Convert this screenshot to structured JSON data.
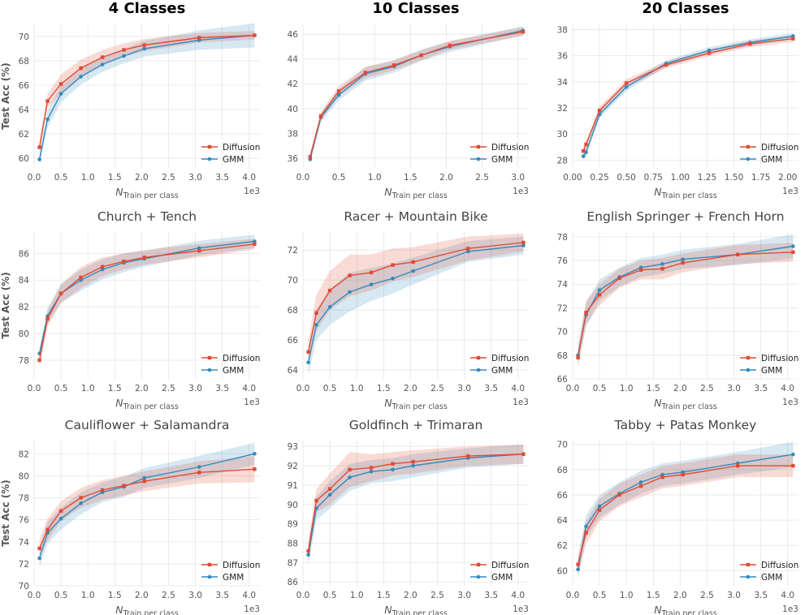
{
  "legend": {
    "diffusion_label": "Diffusion",
    "gmm_label": "GMM"
  },
  "colors": {
    "diffusion": "#e24a33",
    "gmm": "#348abd",
    "axis_text": "#555555",
    "grid": "#e5e5e5"
  },
  "ylabel": "Test Acc (%)",
  "xlabel_main": "N",
  "xlabel_sub": "Train per class",
  "exponent_label": "1e3",
  "chart_data": [
    {
      "type": "line",
      "title": "4 Classes",
      "title_bold": true,
      "x": [
        0.1,
        0.25,
        0.5,
        0.87,
        1.27,
        1.67,
        2.05,
        3.07,
        4.1
      ],
      "series": [
        {
          "name": "Diffusion",
          "values": [
            60.9,
            64.7,
            66.1,
            67.4,
            68.3,
            68.9,
            69.3,
            69.9,
            70.1
          ],
          "band": [
            0.45,
            0.55,
            0.8,
            0.7,
            0.6,
            0.55,
            0.5,
            0.4,
            0.35
          ]
        },
        {
          "name": "GMM",
          "values": [
            59.9,
            63.2,
            65.3,
            66.7,
            67.7,
            68.4,
            69.0,
            69.7,
            70.1
          ],
          "band": [
            0.5,
            0.7,
            0.7,
            0.65,
            0.6,
            0.6,
            0.65,
            0.8,
            1.0
          ]
        }
      ],
      "xlim": [
        0,
        4.2
      ],
      "ylim": [
        59.2,
        71.0
      ],
      "xticks": [
        0.0,
        0.5,
        1.0,
        1.5,
        2.0,
        2.5,
        3.0,
        3.5,
        4.0
      ],
      "xtick_labels": [
        "0.0",
        "0.5",
        "1.0",
        "1.5",
        "2.0",
        "2.5",
        "3.0",
        "3.5",
        "4.0"
      ],
      "yticks": [
        60,
        62,
        64,
        66,
        68,
        70
      ],
      "ytick_labels": [
        "60",
        "62",
        "64",
        "66",
        "68",
        "70"
      ],
      "show_ylabel": true
    },
    {
      "type": "line",
      "title": "10 Classes",
      "title_bold": true,
      "x": [
        0.1,
        0.25,
        0.5,
        0.87,
        1.27,
        1.65,
        2.05,
        3.07
      ],
      "series": [
        {
          "name": "Diffusion",
          "values": [
            36.1,
            39.4,
            41.4,
            42.9,
            43.5,
            44.3,
            45.1,
            46.2
          ],
          "band": [
            0.3,
            0.35,
            0.4,
            0.45,
            0.4,
            0.4,
            0.35,
            0.35
          ]
        },
        {
          "name": "GMM",
          "values": [
            35.9,
            39.3,
            41.1,
            42.8,
            43.4,
            44.3,
            45.0,
            46.3
          ],
          "band": [
            0.3,
            0.35,
            0.45,
            0.55,
            0.5,
            0.45,
            0.45,
            0.35
          ]
        }
      ],
      "xlim": [
        0,
        3.15
      ],
      "ylim": [
        35.2,
        46.8
      ],
      "xticks": [
        0.0,
        0.5,
        1.0,
        1.5,
        2.0,
        2.5,
        3.0
      ],
      "xtick_labels": [
        "0.0",
        "0.5",
        "1.0",
        "1.5",
        "2.0",
        "2.5",
        "3.0"
      ],
      "yticks": [
        36,
        38,
        40,
        42,
        44,
        46
      ],
      "ytick_labels": [
        "36",
        "38",
        "40",
        "42",
        "44",
        "46"
      ],
      "show_ylabel": false
    },
    {
      "type": "line",
      "title": "20 Classes",
      "title_bold": true,
      "x": [
        0.1,
        0.125,
        0.25,
        0.5,
        0.87,
        1.27,
        1.65,
        2.05
      ],
      "series": [
        {
          "name": "Diffusion",
          "values": [
            28.7,
            29.2,
            31.8,
            33.9,
            35.3,
            36.2,
            36.9,
            37.3
          ],
          "band": [
            0.3,
            0.3,
            0.3,
            0.3,
            0.25,
            0.25,
            0.25,
            0.25
          ]
        },
        {
          "name": "GMM",
          "values": [
            28.3,
            28.6,
            31.5,
            33.6,
            35.4,
            36.4,
            37.0,
            37.5
          ],
          "band": [
            0.3,
            0.3,
            0.3,
            0.3,
            0.25,
            0.25,
            0.25,
            0.25
          ]
        }
      ],
      "xlim": [
        0,
        2.1
      ],
      "ylim": [
        27.4,
        38.4
      ],
      "xticks": [
        0.0,
        0.25,
        0.5,
        0.75,
        1.0,
        1.25,
        1.5,
        1.75,
        2.0
      ],
      "xtick_labels": [
        "0.00",
        "0.25",
        "0.50",
        "0.75",
        "1.00",
        "1.25",
        "1.50",
        "1.75",
        "2.00"
      ],
      "yticks": [
        28,
        30,
        32,
        34,
        36,
        38
      ],
      "ytick_labels": [
        "28",
        "30",
        "32",
        "34",
        "36",
        "38"
      ],
      "show_ylabel": false
    },
    {
      "type": "line",
      "title": "Church + Tench",
      "title_bold": false,
      "x": [
        0.1,
        0.25,
        0.5,
        0.87,
        1.27,
        1.67,
        2.05,
        3.07,
        4.1
      ],
      "series": [
        {
          "name": "Diffusion",
          "values": [
            78.0,
            81.1,
            83.0,
            84.2,
            85.0,
            85.4,
            85.7,
            86.2,
            86.7
          ],
          "band": [
            0.4,
            0.6,
            0.7,
            0.8,
            0.7,
            0.6,
            0.55,
            0.5,
            0.4
          ]
        },
        {
          "name": "GMM",
          "values": [
            78.5,
            81.3,
            83.0,
            84.0,
            84.8,
            85.3,
            85.6,
            86.4,
            86.9
          ],
          "band": [
            0.4,
            0.6,
            0.7,
            0.8,
            0.75,
            0.7,
            0.6,
            0.55,
            0.5
          ]
        }
      ],
      "xlim": [
        0,
        4.2
      ],
      "ylim": [
        76.6,
        87.6
      ],
      "xticks": [
        0.0,
        0.5,
        1.0,
        1.5,
        2.0,
        2.5,
        3.0,
        3.5,
        4.0
      ],
      "xtick_labels": [
        "0.0",
        "0.5",
        "1.0",
        "1.5",
        "2.0",
        "2.5",
        "3.0",
        "3.5",
        "4.0"
      ],
      "yticks": [
        78,
        80,
        82,
        84,
        86
      ],
      "ytick_labels": [
        "78",
        "80",
        "82",
        "84",
        "86"
      ],
      "show_ylabel": true
    },
    {
      "type": "line",
      "title": "Racer + Mountain Bike",
      "title_bold": false,
      "x": [
        0.1,
        0.25,
        0.5,
        0.87,
        1.27,
        1.67,
        2.05,
        3.07,
        4.1
      ],
      "series": [
        {
          "name": "Diffusion",
          "values": [
            65.2,
            67.8,
            69.3,
            70.3,
            70.5,
            71.0,
            71.2,
            72.1,
            72.5
          ],
          "band": [
            0.8,
            1.2,
            1.3,
            1.4,
            1.2,
            1.1,
            1.0,
            0.8,
            0.6
          ]
        },
        {
          "name": "GMM",
          "values": [
            64.5,
            67.0,
            68.2,
            69.2,
            69.7,
            70.1,
            70.6,
            71.9,
            72.3
          ],
          "band": [
            0.8,
            1.0,
            1.2,
            1.3,
            1.1,
            1.0,
            0.9,
            0.7,
            0.6
          ]
        }
      ],
      "xlim": [
        0,
        4.2
      ],
      "ylim": [
        63.4,
        73.2
      ],
      "xticks": [
        0.0,
        0.5,
        1.0,
        1.5,
        2.0,
        2.5,
        3.0,
        3.5,
        4.0
      ],
      "xtick_labels": [
        "0.0",
        "0.5",
        "1.0",
        "1.5",
        "2.0",
        "2.5",
        "3.0",
        "3.5",
        "4.0"
      ],
      "yticks": [
        64,
        66,
        68,
        70,
        72
      ],
      "ytick_labels": [
        "64",
        "66",
        "68",
        "70",
        "72"
      ],
      "show_ylabel": false
    },
    {
      "type": "line",
      "title": "English Springer + French Horn",
      "title_bold": false,
      "x": [
        0.1,
        0.25,
        0.5,
        0.87,
        1.27,
        1.67,
        2.05,
        3.07,
        4.1
      ],
      "series": [
        {
          "name": "Diffusion",
          "values": [
            67.8,
            71.6,
            73.1,
            74.5,
            75.2,
            75.3,
            75.8,
            76.5,
            76.7
          ],
          "band": [
            0.8,
            1.0,
            0.9,
            0.8,
            0.8,
            0.9,
            0.8,
            0.8,
            0.8
          ]
        },
        {
          "name": "GMM",
          "values": [
            68.0,
            71.4,
            73.5,
            74.6,
            75.4,
            75.7,
            76.1,
            76.5,
            77.2
          ],
          "band": [
            0.8,
            1.0,
            0.9,
            0.8,
            0.8,
            0.8,
            0.8,
            0.9,
            1.0
          ]
        }
      ],
      "xlim": [
        0,
        4.2
      ],
      "ylim": [
        66.0,
        78.4
      ],
      "xticks": [
        0.0,
        0.5,
        1.0,
        1.5,
        2.0,
        2.5,
        3.0,
        3.5,
        4.0
      ],
      "xtick_labels": [
        "0.0",
        "0.5",
        "1.0",
        "1.5",
        "2.0",
        "2.5",
        "3.0",
        "3.5",
        "4.0"
      ],
      "yticks": [
        66,
        68,
        70,
        72,
        74,
        76,
        78
      ],
      "ytick_labels": [
        "66",
        "68",
        "70",
        "72",
        "74",
        "76",
        "78"
      ],
      "show_ylabel": false
    },
    {
      "type": "line",
      "title": "Cauliflower + Salamandra",
      "title_bold": false,
      "x": [
        0.1,
        0.25,
        0.5,
        0.87,
        1.27,
        1.67,
        2.05,
        3.07,
        4.1
      ],
      "series": [
        {
          "name": "Diffusion",
          "values": [
            73.4,
            75.1,
            76.8,
            78.0,
            78.7,
            79.1,
            79.5,
            80.3,
            80.6
          ],
          "band": [
            0.8,
            1.0,
            0.9,
            0.9,
            0.9,
            0.9,
            0.9,
            1.0,
            1.2
          ]
        },
        {
          "name": "GMM",
          "values": [
            72.5,
            74.8,
            76.1,
            77.5,
            78.5,
            79.0,
            79.8,
            80.8,
            82.0
          ],
          "band": [
            0.8,
            1.0,
            1.0,
            1.0,
            0.9,
            0.9,
            0.9,
            1.0,
            1.0
          ]
        }
      ],
      "xlim": [
        0,
        4.2
      ],
      "ylim": [
        70.0,
        83.2
      ],
      "xticks": [
        0.0,
        0.5,
        1.0,
        1.5,
        2.0,
        2.5,
        3.0,
        3.5,
        4.0
      ],
      "xtick_labels": [
        "0.0",
        "0.5",
        "1.0",
        "1.5",
        "2.0",
        "2.5",
        "3.0",
        "3.5",
        "4.0"
      ],
      "yticks": [
        70,
        72,
        74,
        76,
        78,
        80,
        82
      ],
      "ytick_labels": [
        "70",
        "72",
        "74",
        "76",
        "78",
        "80",
        "82"
      ],
      "show_ylabel": true
    },
    {
      "type": "line",
      "title": "Goldfinch + Trimaran",
      "title_bold": false,
      "x": [
        0.1,
        0.25,
        0.5,
        0.87,
        1.27,
        1.67,
        2.05,
        3.07,
        4.1
      ],
      "series": [
        {
          "name": "Diffusion",
          "values": [
            87.6,
            90.2,
            90.8,
            91.8,
            91.9,
            92.1,
            92.2,
            92.5,
            92.6
          ],
          "band": [
            0.5,
            0.6,
            0.8,
            0.9,
            0.7,
            0.6,
            0.6,
            0.5,
            0.5
          ]
        },
        {
          "name": "GMM",
          "values": [
            87.4,
            89.8,
            90.5,
            91.4,
            91.7,
            91.8,
            92.0,
            92.4,
            92.6
          ],
          "band": [
            0.5,
            0.6,
            0.7,
            0.7,
            0.6,
            0.6,
            0.6,
            0.5,
            0.5
          ]
        }
      ],
      "xlim": [
        0,
        4.2
      ],
      "ylim": [
        85.8,
        93.3
      ],
      "xticks": [
        0.0,
        0.5,
        1.0,
        1.5,
        2.0,
        2.5,
        3.0,
        3.5,
        4.0
      ],
      "xtick_labels": [
        "0.0",
        "0.5",
        "1.0",
        "1.5",
        "2.0",
        "2.5",
        "3.0",
        "3.5",
        "4.0"
      ],
      "yticks": [
        86,
        87,
        88,
        89,
        90,
        91,
        92,
        93
      ],
      "ytick_labels": [
        "86",
        "87",
        "88",
        "89",
        "90",
        "91",
        "92",
        "93"
      ],
      "show_ylabel": false
    },
    {
      "type": "line",
      "title": "Tabby + Patas Monkey",
      "title_bold": false,
      "x": [
        0.1,
        0.25,
        0.5,
        0.87,
        1.27,
        1.67,
        2.05,
        3.07,
        4.1
      ],
      "series": [
        {
          "name": "Diffusion",
          "values": [
            60.5,
            63.0,
            64.8,
            66.0,
            66.7,
            67.4,
            67.6,
            68.3,
            68.3
          ],
          "band": [
            0.8,
            0.9,
            0.9,
            0.9,
            0.9,
            0.9,
            0.9,
            0.9,
            0.9
          ]
        },
        {
          "name": "GMM",
          "values": [
            60.1,
            63.5,
            65.1,
            66.1,
            67.0,
            67.6,
            67.8,
            68.5,
            69.2
          ],
          "band": [
            0.8,
            0.9,
            0.9,
            0.9,
            0.9,
            0.9,
            0.9,
            0.9,
            1.0
          ]
        }
      ],
      "xlim": [
        0,
        4.2
      ],
      "ylim": [
        58.8,
        70.3
      ],
      "xticks": [
        0.0,
        0.5,
        1.0,
        1.5,
        2.0,
        2.5,
        3.0,
        3.5,
        4.0
      ],
      "xtick_labels": [
        "0.0",
        "0.5",
        "1.0",
        "1.5",
        "2.0",
        "2.5",
        "3.0",
        "3.5",
        "4.0"
      ],
      "yticks": [
        60,
        62,
        64,
        66,
        68,
        70
      ],
      "ytick_labels": [
        "60",
        "62",
        "64",
        "66",
        "68",
        "70"
      ],
      "show_ylabel": false
    }
  ]
}
